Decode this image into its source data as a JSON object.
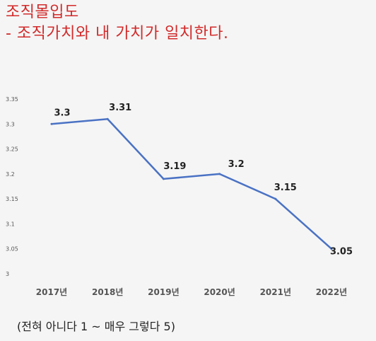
{
  "header": {
    "title": "조직몰입도",
    "subtitle": "- 조직가치와 내 가치가 일치한다."
  },
  "footnote": "(전혀 아니다 1 ~ 매우 그렇다 5)",
  "colors": {
    "title": "#d22a2a",
    "line": "#4a72c4",
    "axis_text": "#555555",
    "label": "#222222"
  },
  "chart_data": {
    "type": "line",
    "categories": [
      "2017년",
      "2018년",
      "2019년",
      "2020년",
      "2021년",
      "2022년"
    ],
    "values": [
      3.3,
      3.31,
      3.19,
      3.2,
      3.15,
      3.05
    ],
    "data_labels": [
      "3.3",
      "3.31",
      "3.19",
      "3.2",
      "3.15",
      "3.05"
    ],
    "ylim": [
      3,
      3.35
    ],
    "yticks": [
      "3",
      "3.05",
      "3.1",
      "3.15",
      "3.2",
      "3.25",
      "3.3",
      "3.35"
    ],
    "grid": false,
    "legend": "none"
  }
}
